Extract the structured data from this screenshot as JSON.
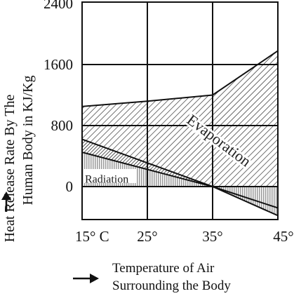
{
  "chart_data": {
    "type": "area",
    "x": [
      15,
      25,
      35,
      45
    ],
    "x_tick_labels": [
      "15° C",
      "25°",
      "35°",
      "45°"
    ],
    "y_ticks": [
      0,
      800,
      1600,
      2400
    ],
    "y_tick_labels": [
      "0",
      "800",
      "1600",
      "2400"
    ],
    "xlim": [
      15,
      45
    ],
    "ylim": [
      -500,
      2400
    ],
    "grid": true,
    "ylabel_line1": "Heat Release Rate By The",
    "ylabel_line2": "Human Body in KJ/Kg",
    "xlabel_line1": "Temperature of Air",
    "xlabel_line2": "Surrounding the Body",
    "boundaries": [
      {
        "x": [
          15,
          25,
          35,
          45
        ],
        "y": [
          1050,
          1120,
          1200,
          1780
        ]
      },
      {
        "x": [
          15,
          35,
          45
        ],
        "y": [
          620,
          0,
          -280
        ]
      },
      {
        "x": [
          15,
          35,
          45
        ],
        "y": [
          450,
          0,
          -380
        ]
      }
    ],
    "regions": [
      {
        "label": "Evaporation",
        "upper_boundary": 0,
        "lower_boundary": 1,
        "fill": "hatch"
      },
      {
        "label": "",
        "upper_boundary": 1,
        "lower_boundary": 2,
        "fill": "dense-hatch"
      },
      {
        "label": "Radiation",
        "upper_boundary": 2,
        "lower_boundary": "zero",
        "fill": "dots"
      }
    ],
    "annotations": [
      "Evaporation",
      "Radiation"
    ]
  }
}
